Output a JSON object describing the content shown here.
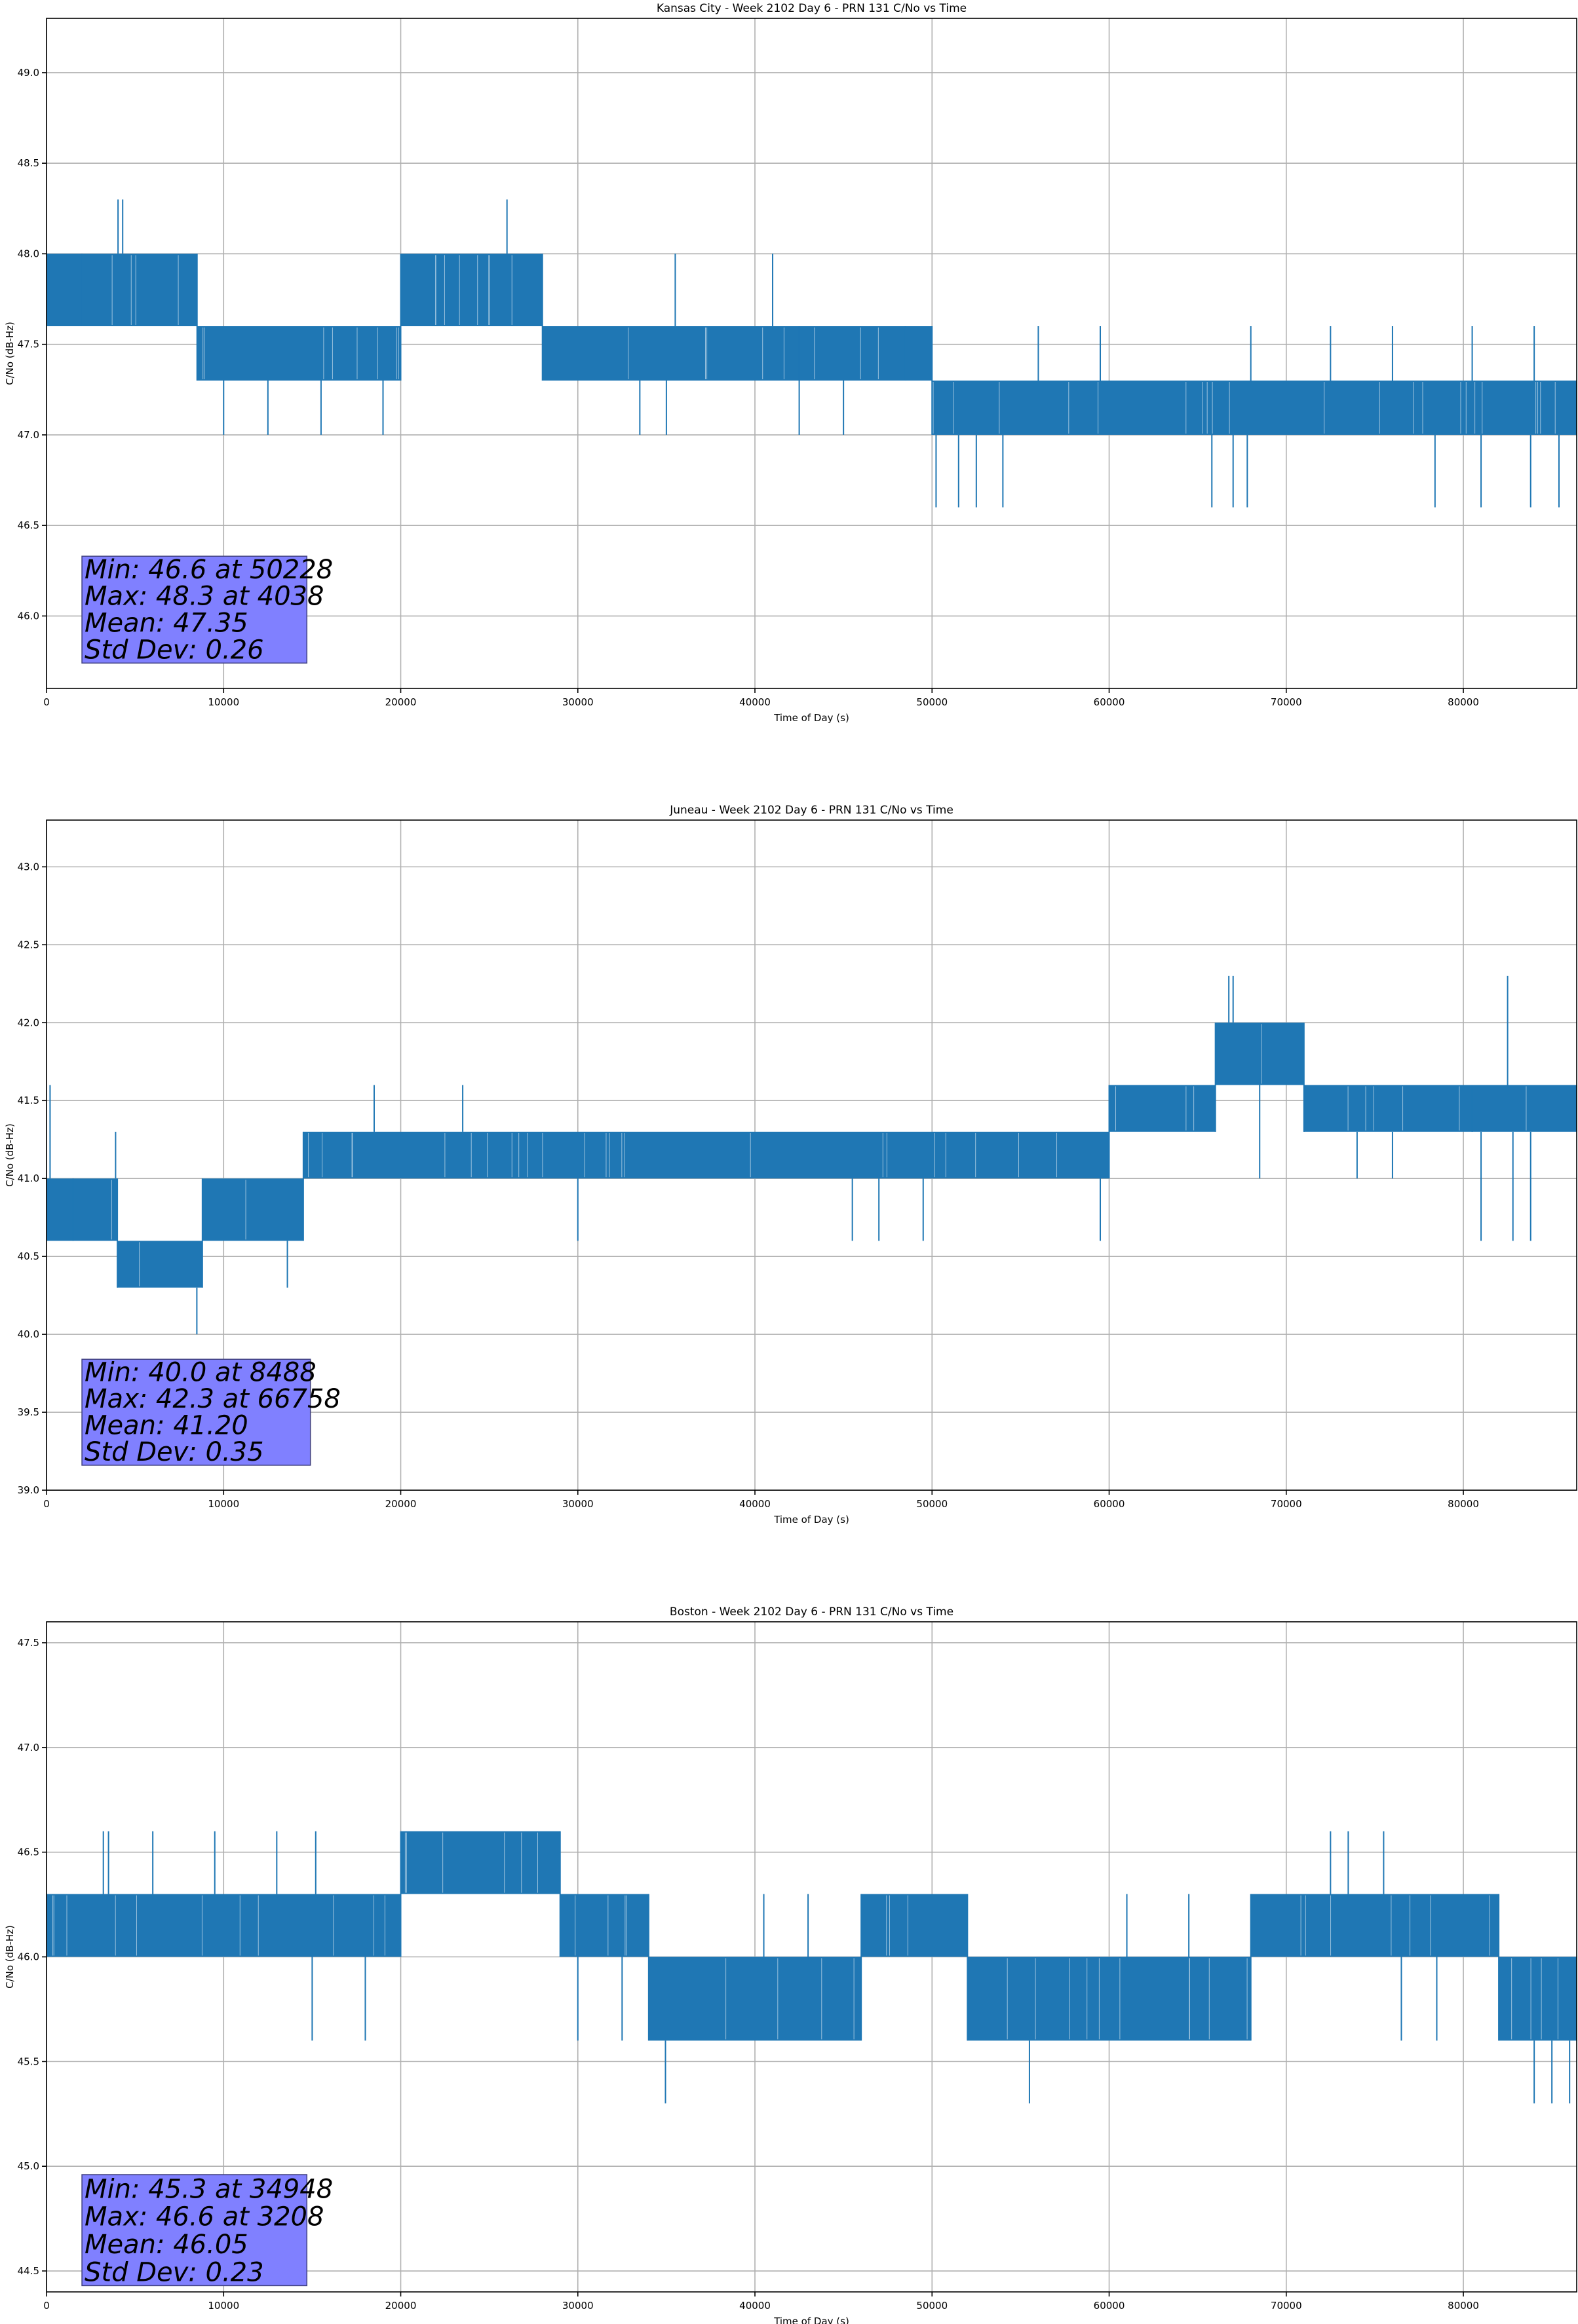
{
  "colors": {
    "series": "#1f77b4",
    "grid": "#b0b0b0",
    "stats_box": "#8080ff",
    "axis": "#000000"
  },
  "chart_data": [
    {
      "type": "line",
      "title": "Kansas City - Week 2102 Day 6 - PRN 131 C/No vs Time",
      "xlabel": "Time of Day (s)",
      "ylabel": "C/No (dB-Hz)",
      "xlim": [
        0,
        86400
      ],
      "ylim": [
        45.6,
        49.3
      ],
      "xticks": [
        0,
        10000,
        20000,
        30000,
        40000,
        50000,
        60000,
        70000,
        80000
      ],
      "yticks": [
        46.0,
        46.5,
        47.0,
        47.5,
        48.0,
        48.5,
        49.0
      ],
      "ytick_labels": [
        "46.0",
        "46.5",
        "47.0",
        "47.5",
        "48.0",
        "48.5",
        "49.0"
      ],
      "grid": true,
      "bands": [
        {
          "x": [
            0,
            2000
          ],
          "values": [
            47.6,
            48.0
          ]
        },
        {
          "x": [
            2000,
            8500
          ],
          "values": [
            47.6,
            48.0
          ]
        },
        {
          "x": [
            8500,
            20000
          ],
          "values": [
            47.3,
            47.6
          ]
        },
        {
          "x": [
            20000,
            28000
          ],
          "values": [
            47.6,
            48.0
          ]
        },
        {
          "x": [
            28000,
            42500
          ],
          "values": [
            47.3,
            47.6
          ]
        },
        {
          "x": [
            42500,
            50000
          ],
          "values": [
            47.3,
            47.6
          ]
        },
        {
          "x": [
            50000,
            86400
          ],
          "values": [
            47.0,
            47.3
          ]
        }
      ],
      "spikes": [
        {
          "x": 4038,
          "value": 48.3
        },
        {
          "x": 4300,
          "value": 48.3
        },
        {
          "x": 26000,
          "value": 48.3
        },
        {
          "x": 35500,
          "value": 48.0
        },
        {
          "x": 41000,
          "value": 48.0
        },
        {
          "x": 50228,
          "value": 46.6
        },
        {
          "x": 51500,
          "value": 46.6
        },
        {
          "x": 52500,
          "value": 46.6
        },
        {
          "x": 54000,
          "value": 46.6
        },
        {
          "x": 65800,
          "value": 46.6
        },
        {
          "x": 67000,
          "value": 46.6
        },
        {
          "x": 67800,
          "value": 46.6
        },
        {
          "x": 78400,
          "value": 46.6
        },
        {
          "x": 81000,
          "value": 46.6
        },
        {
          "x": 83800,
          "value": 46.6
        },
        {
          "x": 85400,
          "value": 46.6
        },
        {
          "x": 10000,
          "value": 47.0
        },
        {
          "x": 12500,
          "value": 47.0
        },
        {
          "x": 15500,
          "value": 47.0
        },
        {
          "x": 19000,
          "value": 47.0
        },
        {
          "x": 33500,
          "value": 47.0
        },
        {
          "x": 35000,
          "value": 47.0
        },
        {
          "x": 42500,
          "value": 47.0
        },
        {
          "x": 45000,
          "value": 47.0
        },
        {
          "x": 48500,
          "value": 47.6
        },
        {
          "x": 56000,
          "value": 47.6
        },
        {
          "x": 59500,
          "value": 47.6
        },
        {
          "x": 68000,
          "value": 47.6
        },
        {
          "x": 72500,
          "value": 47.6
        },
        {
          "x": 76000,
          "value": 47.6
        },
        {
          "x": 80500,
          "value": 47.6
        },
        {
          "x": 84000,
          "value": 47.6
        }
      ],
      "stats": [
        "Min: 46.6 at 50228",
        "Max: 48.3 at 4038",
        "Mean: 47.35",
        "Std Dev: 0.26"
      ],
      "stats_box": {
        "x": [
          2000,
          14700
        ],
        "y": [
          45.74,
          46.33
        ]
      }
    },
    {
      "type": "line",
      "title": "Juneau - Week 2102 Day 6 - PRN 131 C/No vs Time",
      "xlabel": "Time of Day (s)",
      "ylabel": "C/No (dB-Hz)",
      "xlim": [
        0,
        86400
      ],
      "ylim": [
        39.0,
        43.3
      ],
      "xticks": [
        0,
        10000,
        20000,
        30000,
        40000,
        50000,
        60000,
        70000,
        80000
      ],
      "yticks": [
        39.0,
        39.5,
        40.0,
        40.5,
        41.0,
        41.5,
        42.0,
        42.5,
        43.0
      ],
      "ytick_labels": [
        "39.0",
        "39.5",
        "40.0",
        "40.5",
        "41.0",
        "41.5",
        "42.0",
        "42.5",
        "43.0"
      ],
      "grid": true,
      "bands": [
        {
          "x": [
            0,
            1500
          ],
          "values": [
            40.6,
            41.0
          ]
        },
        {
          "x": [
            1500,
            4000
          ],
          "values": [
            40.6,
            41.0
          ]
        },
        {
          "x": [
            4000,
            8800
          ],
          "values": [
            40.3,
            40.6
          ]
        },
        {
          "x": [
            8800,
            14500
          ],
          "values": [
            40.6,
            41.0
          ]
        },
        {
          "x": [
            14500,
            60000
          ],
          "values": [
            41.0,
            41.3
          ]
        },
        {
          "x": [
            60000,
            66000
          ],
          "values": [
            41.3,
            41.6
          ]
        },
        {
          "x": [
            66000,
            71000
          ],
          "values": [
            41.6,
            42.0
          ]
        },
        {
          "x": [
            71000,
            80500
          ],
          "values": [
            41.3,
            41.6
          ]
        },
        {
          "x": [
            80500,
            86400
          ],
          "values": [
            41.3,
            41.6
          ]
        }
      ],
      "spikes": [
        {
          "x": 8488,
          "value": 40.0
        },
        {
          "x": 66758,
          "value": 42.3
        },
        {
          "x": 67000,
          "value": 42.3
        },
        {
          "x": 82500,
          "value": 42.3
        },
        {
          "x": 200,
          "value": 41.6
        },
        {
          "x": 3900,
          "value": 41.3
        },
        {
          "x": 18500,
          "value": 41.6
        },
        {
          "x": 23500,
          "value": 41.6
        },
        {
          "x": 30000,
          "value": 40.6
        },
        {
          "x": 45500,
          "value": 40.6
        },
        {
          "x": 47000,
          "value": 40.6
        },
        {
          "x": 49500,
          "value": 40.6
        },
        {
          "x": 59500,
          "value": 40.6
        },
        {
          "x": 68500,
          "value": 41.0
        },
        {
          "x": 74000,
          "value": 41.0
        },
        {
          "x": 76000,
          "value": 41.0
        },
        {
          "x": 81000,
          "value": 40.6
        },
        {
          "x": 82800,
          "value": 40.6
        },
        {
          "x": 83800,
          "value": 40.6
        },
        {
          "x": 13600,
          "value": 40.3
        }
      ],
      "stats": [
        "Min: 40.0 at 8488",
        "Max: 42.3 at 66758",
        "Mean: 41.20",
        "Std Dev: 0.35"
      ],
      "stats_box": {
        "x": [
          2000,
          14900
        ],
        "y": [
          39.16,
          39.84
        ]
      }
    },
    {
      "type": "line",
      "title": "Boston - Week 2102 Day 6 - PRN 131 C/No vs Time",
      "xlabel": "Time of Day (s)",
      "ylabel": "C/No (dB-Hz)",
      "xlim": [
        0,
        86400
      ],
      "ylim": [
        44.4,
        47.6
      ],
      "xticks": [
        0,
        10000,
        20000,
        30000,
        40000,
        50000,
        60000,
        70000,
        80000
      ],
      "yticks": [
        44.5,
        45.0,
        45.5,
        46.0,
        46.5,
        47.0,
        47.5
      ],
      "ytick_labels": [
        "44.5",
        "45.0",
        "45.5",
        "46.0",
        "46.5",
        "47.0",
        "47.5"
      ],
      "grid": true,
      "bands": [
        {
          "x": [
            0,
            20000
          ],
          "values": [
            46.0,
            46.3
          ]
        },
        {
          "x": [
            20000,
            29000
          ],
          "values": [
            46.3,
            46.6
          ]
        },
        {
          "x": [
            29000,
            34000
          ],
          "values": [
            46.0,
            46.3
          ]
        },
        {
          "x": [
            34000,
            46000
          ],
          "values": [
            45.6,
            46.0
          ]
        },
        {
          "x": [
            46000,
            52000
          ],
          "values": [
            46.0,
            46.3
          ]
        },
        {
          "x": [
            52000,
            68000
          ],
          "values": [
            45.6,
            46.0
          ]
        },
        {
          "x": [
            68000,
            82000
          ],
          "values": [
            46.0,
            46.3
          ]
        },
        {
          "x": [
            82000,
            86400
          ],
          "values": [
            45.6,
            46.0
          ]
        }
      ],
      "spikes": [
        {
          "x": 3208,
          "value": 46.6
        },
        {
          "x": 3500,
          "value": 46.6
        },
        {
          "x": 6000,
          "value": 46.6
        },
        {
          "x": 9500,
          "value": 46.6
        },
        {
          "x": 13000,
          "value": 46.6
        },
        {
          "x": 15200,
          "value": 46.6
        },
        {
          "x": 34948,
          "value": 45.3
        },
        {
          "x": 55500,
          "value": 45.3
        },
        {
          "x": 84000,
          "value": 45.3
        },
        {
          "x": 85000,
          "value": 45.3
        },
        {
          "x": 86000,
          "value": 45.3
        },
        {
          "x": 72500,
          "value": 46.6
        },
        {
          "x": 73500,
          "value": 46.6
        },
        {
          "x": 75500,
          "value": 46.6
        },
        {
          "x": 15000,
          "value": 45.6
        },
        {
          "x": 18000,
          "value": 45.6
        },
        {
          "x": 30000,
          "value": 45.6
        },
        {
          "x": 32500,
          "value": 45.6
        },
        {
          "x": 40500,
          "value": 46.3
        },
        {
          "x": 43000,
          "value": 46.3
        },
        {
          "x": 61000,
          "value": 46.3
        },
        {
          "x": 64500,
          "value": 46.3
        },
        {
          "x": 76500,
          "value": 45.6
        },
        {
          "x": 78500,
          "value": 45.6
        }
      ],
      "stats": [
        "Min: 45.3 at 34948",
        "Max: 46.6 at 3208",
        "Mean: 46.05",
        "Std Dev: 0.23"
      ],
      "stats_box": {
        "x": [
          2000,
          14700
        ],
        "y": [
          44.43,
          44.96
        ]
      }
    }
  ]
}
